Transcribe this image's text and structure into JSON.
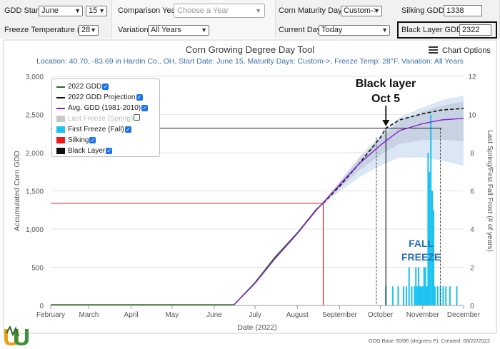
{
  "controls": {
    "gdd_start_label": "GDD Start:",
    "gdd_start_month": "June",
    "gdd_start_day": "15",
    "comparison_years_label": "Comparison Years:",
    "comparison_years_placeholder": "Choose a Year",
    "corn_maturity_label": "Corn Maturity Days:",
    "corn_maturity_value": "Custom->",
    "silking_gdds_label": "Silking GDDs:",
    "silking_gdds_value": "1338",
    "freeze_temp_label": "Freeze Temperature (°F):",
    "freeze_temp_value": "28",
    "variation_label": "Variation:",
    "variation_value": "All Years",
    "current_day_label": "Current Day:",
    "current_day_value": "Today",
    "black_layer_gdds_label": "Black Layer GDDs:",
    "black_layer_gdds_value": "2322"
  },
  "header": {
    "title": "Corn Growing Degree Day Tool",
    "subtitle": "Location: 40.70, -83.69 in Hardin Co., OH, Start Date: June 15, Maturity Days: Custom->, Freeze Temp: 28°F, Variation: All Years",
    "menu_label": "Chart Options"
  },
  "legend": [
    {
      "label": "2022 GDD",
      "color": "#2e6b1e",
      "kind": "line",
      "checked": true
    },
    {
      "label": "2022 GDD Projection",
      "color": "#111111",
      "kind": "dash",
      "checked": true
    },
    {
      "label": "Avg. GDD (1981-2010)",
      "color": "#8b1fd1",
      "kind": "line",
      "checked": true
    },
    {
      "label": "Last Freeze (Spring)",
      "color": "#c8c8c8",
      "kind": "box",
      "checked": false
    },
    {
      "label": "First Freeze (Fall)",
      "color": "#19c2f0",
      "kind": "box",
      "checked": true
    },
    {
      "label": "Silking",
      "color": "#ee1c1c",
      "kind": "box",
      "checked": true
    },
    {
      "label": "Black Layer",
      "color": "#111111",
      "kind": "box",
      "checked": true
    }
  ],
  "annotations": {
    "black_layer_line1": "Black layer",
    "black_layer_line2": "Oct 5",
    "fall_line1": "FALL",
    "fall_line2": "FREEZE"
  },
  "footer": "GDD Base 50/86 (degrees F); Created: 08/22/2022",
  "chart_data": {
    "type": "line",
    "xlabel": "Date (2022)",
    "ylabel": "Accumulated Corn GDD",
    "y2label": "Last Spring/First Fall Frost (# of years)",
    "x_ticks": [
      "February",
      "March",
      "April",
      "May",
      "June",
      "July",
      "August",
      "September",
      "October",
      "November",
      "December"
    ],
    "y_ticks": [
      "0",
      "500",
      "1,000",
      "1,500",
      "2,000",
      "2,500",
      "3,000"
    ],
    "y2_ticks": [
      "0",
      "2",
      "4",
      "6",
      "8",
      "10",
      "12"
    ],
    "ylim": [
      0,
      3000
    ],
    "y2lim": [
      0,
      12
    ],
    "series": [
      {
        "name": "2022 GDD",
        "color": "#2e6b1e",
        "x": [
          "Jun 15",
          "Jul 1",
          "Jul 15",
          "Aug 1",
          "Aug 15",
          "Aug 20"
        ],
        "values": [
          0,
          300,
          620,
          950,
          1260,
          1340
        ]
      },
      {
        "name": "2022 GDD Projection",
        "color": "#111111",
        "x": [
          "Aug 20",
          "Sep 1",
          "Sep 15",
          "Oct 1",
          "Oct 5",
          "Oct 15",
          "Nov 1",
          "Nov 15",
          "Dec 1"
        ],
        "values": [
          1340,
          1560,
          1850,
          2200,
          2322,
          2430,
          2510,
          2560,
          2580
        ]
      },
      {
        "name": "Avg. GDD (1981-2010)",
        "color": "#8b1fd1",
        "x": [
          "Jun 15",
          "Jul 1",
          "Jul 15",
          "Aug 1",
          "Aug 15",
          "Sep 1",
          "Sep 15",
          "Oct 1",
          "Oct 15",
          "Nov 1",
          "Nov 15",
          "Dec 1"
        ],
        "values": [
          0,
          290,
          600,
          940,
          1250,
          1580,
          1850,
          2100,
          2290,
          2380,
          2430,
          2450
        ]
      }
    ],
    "silking": {
      "date": "Aug 20",
      "gdd": 1338
    },
    "black_layer": {
      "date": "Oct 5",
      "gdd": 2322
    },
    "first_freeze_years": {
      "x": [
        "Oct 5",
        "Oct 10",
        "Oct 14",
        "Oct 18",
        "Oct 20",
        "Oct 22",
        "Oct 24",
        "Oct 26",
        "Oct 27",
        "Oct 28",
        "Oct 29",
        "Oct 30",
        "Oct 31",
        "Nov 1",
        "Nov 2",
        "Nov 3",
        "Nov 4",
        "Nov 5",
        "Nov 6",
        "Nov 7",
        "Nov 8",
        "Nov 9",
        "Nov 10",
        "Nov 12",
        "Nov 14",
        "Nov 16",
        "Nov 18",
        "Nov 21",
        "Nov 26"
      ],
      "values": [
        1,
        1,
        1,
        1,
        1,
        2,
        1,
        1,
        2,
        1,
        2,
        1,
        1,
        1,
        2,
        2,
        1,
        8,
        7,
        10,
        6,
        5,
        1,
        1,
        1,
        1,
        1,
        1,
        1
      ]
    }
  }
}
